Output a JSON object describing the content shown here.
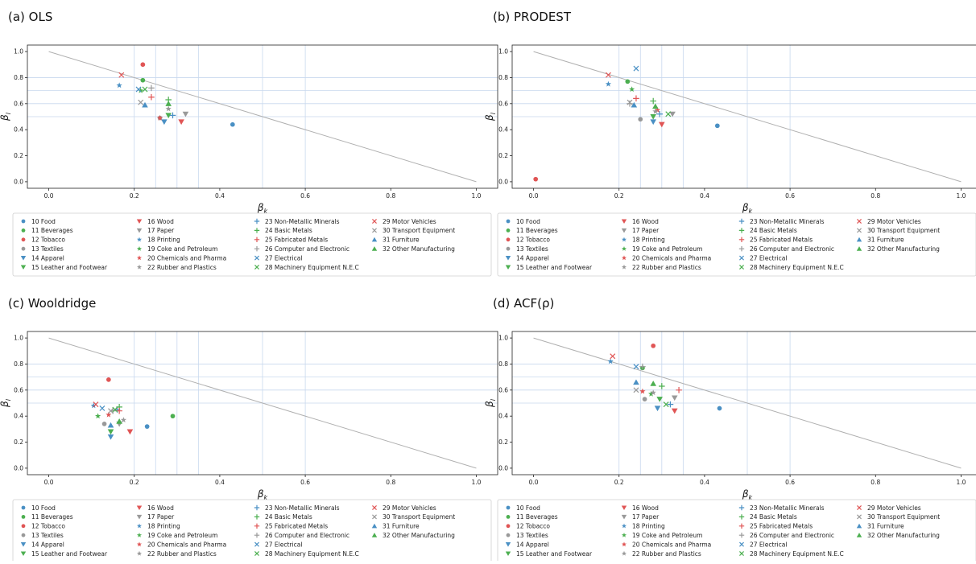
{
  "legend_items": [
    {
      "label": "10 Food",
      "color": "#4a90c4",
      "marker": "circle"
    },
    {
      "label": "11 Beverages",
      "color": "#4caf50",
      "marker": "circle"
    },
    {
      "label": "12 Tobacco",
      "color": "#e05555",
      "marker": "circle"
    },
    {
      "label": "13 Textiles",
      "color": "#999999",
      "marker": "circle"
    },
    {
      "label": "14 Apparel",
      "color": "#4a90c4",
      "marker": "tri-down"
    },
    {
      "label": "15 Leather and Footwear",
      "color": "#4caf50",
      "marker": "tri-down"
    },
    {
      "label": "16 Wood",
      "color": "#e05555",
      "marker": "tri-down"
    },
    {
      "label": "17 Paper",
      "color": "#999999",
      "marker": "tri-down"
    },
    {
      "label": "18 Printing",
      "color": "#4a90c4",
      "marker": "star"
    },
    {
      "label": "19 Coke and Petroleum",
      "color": "#4caf50",
      "marker": "star"
    },
    {
      "label": "20 Chemicals and Pharma",
      "color": "#e05555",
      "marker": "star"
    },
    {
      "label": "22 Rubber and Plastics",
      "color": "#999999",
      "marker": "star"
    },
    {
      "label": "23 Non-Metallic Minerals",
      "color": "#4a90c4",
      "marker": "plus"
    },
    {
      "label": "24 Basic Metals",
      "color": "#4caf50",
      "marker": "plus"
    },
    {
      "label": "25 Fabricated Metals",
      "color": "#e05555",
      "marker": "plus"
    },
    {
      "label": "26 Computer and Electronic",
      "color": "#999999",
      "marker": "plus"
    },
    {
      "label": "27 Electrical",
      "color": "#4a90c4",
      "marker": "x"
    },
    {
      "label": "28 Machinery Equipment N.E.C",
      "color": "#4caf50",
      "marker": "x"
    },
    {
      "label": "29 Motor Vehicles",
      "color": "#e05555",
      "marker": "x"
    },
    {
      "label": "30 Transport Equipment",
      "color": "#999999",
      "marker": "x"
    },
    {
      "label": "31 Furniture",
      "color": "#4a90c4",
      "marker": "tri-up"
    },
    {
      "label": "32 Other Manufacturing",
      "color": "#4caf50",
      "marker": "tri-up"
    }
  ],
  "colors": {
    "ref_line": "#b0b0b0",
    "grid": "#c8d8ee"
  },
  "chart_data": [
    {
      "type": "scatter",
      "title": "(a) OLS",
      "xlabel": "β_k",
      "ylabel": "β_l",
      "xlim": [
        -0.05,
        1.05
      ],
      "ylim": [
        -0.05,
        1.05
      ],
      "xticks": [
        "0.0",
        "0.2",
        "0.4",
        "0.6",
        "0.8",
        "1.0"
      ],
      "yticks": [
        "0.0",
        "0.2",
        "0.4",
        "0.6",
        "0.8",
        "1.0"
      ],
      "reference_line": [
        [
          0,
          1
        ],
        [
          1,
          0
        ]
      ],
      "grid_x": [
        0.2,
        0.25,
        0.3,
        0.35,
        0.5,
        0.6
      ],
      "grid_y": [
        0.5,
        0.6,
        0.7,
        0.8
      ],
      "points": [
        {
          "label": "10 Food",
          "x": 0.43,
          "y": 0.44
        },
        {
          "label": "11 Beverages",
          "x": 0.22,
          "y": 0.78
        },
        {
          "label": "12 Tobacco",
          "x": 0.22,
          "y": 0.9
        },
        {
          "label": "13 Textiles",
          "x": 0.26,
          "y": 0.49
        },
        {
          "label": "14 Apparel",
          "x": 0.27,
          "y": 0.46
        },
        {
          "label": "15 Leather and Footwear",
          "x": 0.28,
          "y": 0.51
        },
        {
          "label": "16 Wood",
          "x": 0.31,
          "y": 0.46
        },
        {
          "label": "17 Paper",
          "x": 0.32,
          "y": 0.52
        },
        {
          "label": "18 Printing",
          "x": 0.165,
          "y": 0.74
        },
        {
          "label": "19 Coke and Petroleum",
          "x": 0.215,
          "y": 0.7
        },
        {
          "label": "20 Chemicals and Pharma",
          "x": 0.26,
          "y": 0.49
        },
        {
          "label": "22 Rubber and Plastics",
          "x": 0.28,
          "y": 0.56
        },
        {
          "label": "23 Non-Metallic Minerals",
          "x": 0.29,
          "y": 0.51
        },
        {
          "label": "24 Basic Metals",
          "x": 0.28,
          "y": 0.63
        },
        {
          "label": "25 Fabricated Metals",
          "x": 0.24,
          "y": 0.65
        },
        {
          "label": "26 Computer and Electronic",
          "x": 0.24,
          "y": 0.72
        },
        {
          "label": "27 Electrical",
          "x": 0.21,
          "y": 0.71
        },
        {
          "label": "28 Machinery Equipment N.E.C",
          "x": 0.225,
          "y": 0.71
        },
        {
          "label": "29 Motor Vehicles",
          "x": 0.17,
          "y": 0.82
        },
        {
          "label": "30 Transport Equipment",
          "x": 0.215,
          "y": 0.61
        },
        {
          "label": "31 Furniture",
          "x": 0.225,
          "y": 0.59
        },
        {
          "label": "32 Other Manufacturing",
          "x": 0.28,
          "y": 0.6
        }
      ]
    },
    {
      "type": "scatter",
      "title": "(b) PRODEST",
      "xlabel": "β_k",
      "ylabel": "β_l",
      "xlim": [
        -0.05,
        1.05
      ],
      "ylim": [
        -0.05,
        1.05
      ],
      "xticks": [
        "0.0",
        "0.2",
        "0.4",
        "0.6",
        "0.8",
        "1.0"
      ],
      "yticks": [
        "0.0",
        "0.2",
        "0.4",
        "0.6",
        "0.8",
        "1.0"
      ],
      "reference_line": [
        [
          0,
          1
        ],
        [
          1,
          0
        ]
      ],
      "grid_x": [
        0.2,
        0.25,
        0.3,
        0.35,
        0.5,
        0.6
      ],
      "grid_y": [
        0.5,
        0.6,
        0.7,
        0.8
      ],
      "points": [
        {
          "label": "10 Food",
          "x": 0.43,
          "y": 0.43
        },
        {
          "label": "11 Beverages",
          "x": 0.22,
          "y": 0.77
        },
        {
          "label": "12 Tobacco",
          "x": 0.005,
          "y": 0.02
        },
        {
          "label": "13 Textiles",
          "x": 0.25,
          "y": 0.48
        },
        {
          "label": "14 Apparel",
          "x": 0.28,
          "y": 0.46
        },
        {
          "label": "15 Leather and Footwear",
          "x": 0.28,
          "y": 0.5
        },
        {
          "label": "16 Wood",
          "x": 0.3,
          "y": 0.44
        },
        {
          "label": "17 Paper",
          "x": 0.325,
          "y": 0.52
        },
        {
          "label": "18 Printing",
          "x": 0.175,
          "y": 0.75
        },
        {
          "label": "19 Coke and Petroleum",
          "x": 0.23,
          "y": 0.71
        },
        {
          "label": "20 Chemicals and Pharma",
          "x": 0.29,
          "y": 0.55
        },
        {
          "label": "22 Rubber and Plastics",
          "x": 0.285,
          "y": 0.54
        },
        {
          "label": "23 Non-Metallic Minerals",
          "x": 0.295,
          "y": 0.52
        },
        {
          "label": "24 Basic Metals",
          "x": 0.28,
          "y": 0.62
        },
        {
          "label": "25 Fabricated Metals",
          "x": 0.24,
          "y": 0.64
        },
        {
          "label": "26 Computer and Electronic",
          "x": 0.225,
          "y": 0.6
        },
        {
          "label": "27 Electrical",
          "x": 0.24,
          "y": 0.87
        },
        {
          "label": "28 Machinery Equipment N.E.C",
          "x": 0.315,
          "y": 0.52
        },
        {
          "label": "29 Motor Vehicles",
          "x": 0.175,
          "y": 0.82
        },
        {
          "label": "30 Transport Equipment",
          "x": 0.225,
          "y": 0.61
        },
        {
          "label": "31 Furniture",
          "x": 0.235,
          "y": 0.59
        },
        {
          "label": "32 Other Manufacturing",
          "x": 0.285,
          "y": 0.58
        }
      ]
    },
    {
      "type": "scatter",
      "title": "(c) Wooldridge",
      "xlabel": "β_k",
      "ylabel": "β_l",
      "xlim": [
        -0.05,
        1.05
      ],
      "ylim": [
        -0.05,
        1.05
      ],
      "xticks": [
        "0.0",
        "0.2",
        "0.4",
        "0.6",
        "0.8",
        "1.0"
      ],
      "yticks": [
        "0.0",
        "0.2",
        "0.4",
        "0.6",
        "0.8",
        "1.0"
      ],
      "reference_line": [
        [
          0,
          1
        ],
        [
          1,
          0
        ]
      ],
      "grid_x": [
        0.2,
        0.25,
        0.3,
        0.35,
        0.5,
        0.6
      ],
      "grid_y": [
        0.5,
        0.6,
        0.7,
        0.8
      ],
      "points": [
        {
          "label": "10 Food",
          "x": 0.23,
          "y": 0.32
        },
        {
          "label": "11 Beverages",
          "x": 0.29,
          "y": 0.4
        },
        {
          "label": "12 Tobacco",
          "x": 0.14,
          "y": 0.68
        },
        {
          "label": "13 Textiles",
          "x": 0.13,
          "y": 0.34
        },
        {
          "label": "14 Apparel",
          "x": 0.145,
          "y": 0.24
        },
        {
          "label": "15 Leather and Footwear",
          "x": 0.145,
          "y": 0.28
        },
        {
          "label": "16 Wood",
          "x": 0.19,
          "y": 0.28
        },
        {
          "label": "17 Paper",
          "x": 0.165,
          "y": 0.34
        },
        {
          "label": "18 Printing",
          "x": 0.105,
          "y": 0.48
        },
        {
          "label": "19 Coke and Petroleum",
          "x": 0.115,
          "y": 0.4
        },
        {
          "label": "20 Chemicals and Pharma",
          "x": 0.14,
          "y": 0.41
        },
        {
          "label": "22 Rubber and Plastics",
          "x": 0.175,
          "y": 0.37
        },
        {
          "label": "23 Non-Metallic Minerals",
          "x": 0.16,
          "y": 0.45
        },
        {
          "label": "24 Basic Metals",
          "x": 0.165,
          "y": 0.47
        },
        {
          "label": "25 Fabricated Metals",
          "x": 0.165,
          "y": 0.44
        },
        {
          "label": "26 Computer and Electronic",
          "x": 0.15,
          "y": 0.44
        },
        {
          "label": "27 Electrical",
          "x": 0.125,
          "y": 0.46
        },
        {
          "label": "28 Machinery Equipment N.E.C",
          "x": 0.155,
          "y": 0.45
        },
        {
          "label": "29 Motor Vehicles",
          "x": 0.11,
          "y": 0.49
        },
        {
          "label": "30 Transport Equipment",
          "x": 0.145,
          "y": 0.44
        },
        {
          "label": "31 Furniture",
          "x": 0.145,
          "y": 0.33
        },
        {
          "label": "32 Other Manufacturing",
          "x": 0.165,
          "y": 0.36
        }
      ]
    },
    {
      "type": "scatter",
      "title": "(d) ACF(ρ)",
      "xlabel": "β_k",
      "ylabel": "β_l",
      "xlim": [
        -0.05,
        1.05
      ],
      "ylim": [
        -0.05,
        1.05
      ],
      "xticks": [
        "0.0",
        "0.2",
        "0.4",
        "0.6",
        "0.8",
        "1.0"
      ],
      "yticks": [
        "0.0",
        "0.2",
        "0.4",
        "0.6",
        "0.8",
        "1.0"
      ],
      "reference_line": [
        [
          0,
          1
        ],
        [
          1,
          0
        ]
      ],
      "grid_x": [
        0.2,
        0.25,
        0.3,
        0.35,
        0.5,
        0.6
      ],
      "grid_y": [
        0.5,
        0.6,
        0.7,
        0.8
      ],
      "points": [
        {
          "label": "10 Food",
          "x": 0.435,
          "y": 0.46
        },
        {
          "label": "11 Beverages",
          "x": 0.255,
          "y": 0.77
        },
        {
          "label": "12 Tobacco",
          "x": 0.28,
          "y": 0.94
        },
        {
          "label": "13 Textiles",
          "x": 0.26,
          "y": 0.53
        },
        {
          "label": "14 Apparel",
          "x": 0.29,
          "y": 0.46
        },
        {
          "label": "15 Leather and Footwear",
          "x": 0.295,
          "y": 0.53
        },
        {
          "label": "16 Wood",
          "x": 0.33,
          "y": 0.44
        },
        {
          "label": "17 Paper",
          "x": 0.33,
          "y": 0.54
        },
        {
          "label": "18 Printing",
          "x": 0.18,
          "y": 0.82
        },
        {
          "label": "19 Coke and Petroleum",
          "x": 0.275,
          "y": 0.57
        },
        {
          "label": "20 Chemicals and Pharma",
          "x": 0.255,
          "y": 0.59
        },
        {
          "label": "22 Rubber and Plastics",
          "x": 0.28,
          "y": 0.58
        },
        {
          "label": "23 Non-Metallic Minerals",
          "x": 0.32,
          "y": 0.49
        },
        {
          "label": "24 Basic Metals",
          "x": 0.3,
          "y": 0.63
        },
        {
          "label": "25 Fabricated Metals",
          "x": 0.34,
          "y": 0.6
        },
        {
          "label": "26 Computer and Electronic",
          "x": 0.255,
          "y": 0.78
        },
        {
          "label": "27 Electrical",
          "x": 0.24,
          "y": 0.78
        },
        {
          "label": "28 Machinery Equipment N.E.C",
          "x": 0.31,
          "y": 0.49
        },
        {
          "label": "29 Motor Vehicles",
          "x": 0.185,
          "y": 0.86
        },
        {
          "label": "30 Transport Equipment",
          "x": 0.24,
          "y": 0.6
        },
        {
          "label": "31 Furniture",
          "x": 0.24,
          "y": 0.66
        },
        {
          "label": "32 Other Manufacturing",
          "x": 0.28,
          "y": 0.65
        }
      ]
    }
  ]
}
